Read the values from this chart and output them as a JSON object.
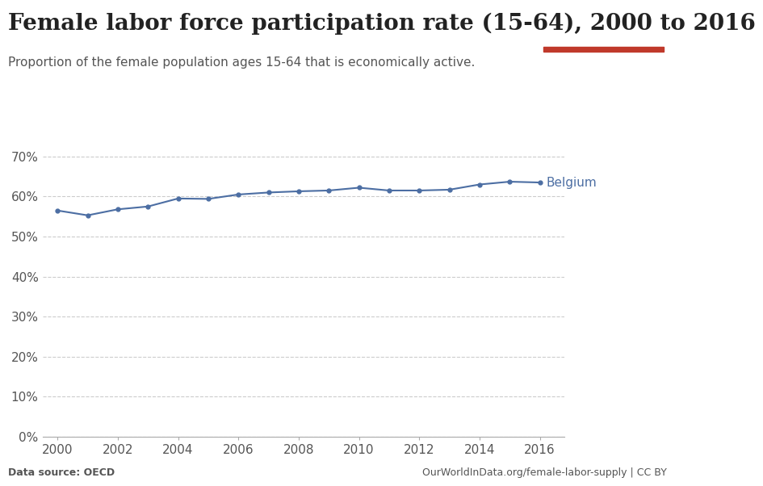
{
  "title": "Female labor force participation rate (15-64), 2000 to 2016",
  "subtitle": "Proportion of the female population ages 15-64 that is economically active.",
  "source_left": "Data source: OECD",
  "source_right": "OurWorldInData.org/female-labor-supply | CC BY",
  "series_label": "Belgium",
  "years": [
    2000,
    2001,
    2002,
    2003,
    2004,
    2005,
    2006,
    2007,
    2008,
    2009,
    2010,
    2011,
    2012,
    2013,
    2014,
    2015,
    2016
  ],
  "values": [
    56.5,
    55.3,
    56.8,
    57.5,
    59.5,
    59.4,
    60.5,
    61.0,
    61.3,
    61.5,
    62.2,
    61.5,
    61.5,
    61.7,
    63.0,
    63.7,
    63.5
  ],
  "line_color": "#4c6ea3",
  "marker": "o",
  "marker_size": 3.5,
  "line_width": 1.5,
  "ylim": [
    0,
    75
  ],
  "yticks": [
    0,
    10,
    20,
    30,
    40,
    50,
    60,
    70
  ],
  "ytick_labels": [
    "0%",
    "10%",
    "20%",
    "30%",
    "40%",
    "50%",
    "60%",
    "70%"
  ],
  "xlim": [
    1999.5,
    2016.8
  ],
  "xticks": [
    2000,
    2002,
    2004,
    2006,
    2008,
    2010,
    2012,
    2014,
    2016
  ],
  "background_color": "#ffffff",
  "grid_color": "#cccccc",
  "title_fontsize": 20,
  "subtitle_fontsize": 11,
  "tick_fontsize": 11,
  "label_color": "#555555",
  "title_color": "#222222",
  "logo_bg": "#1a2e4a",
  "logo_red": "#c0392b"
}
